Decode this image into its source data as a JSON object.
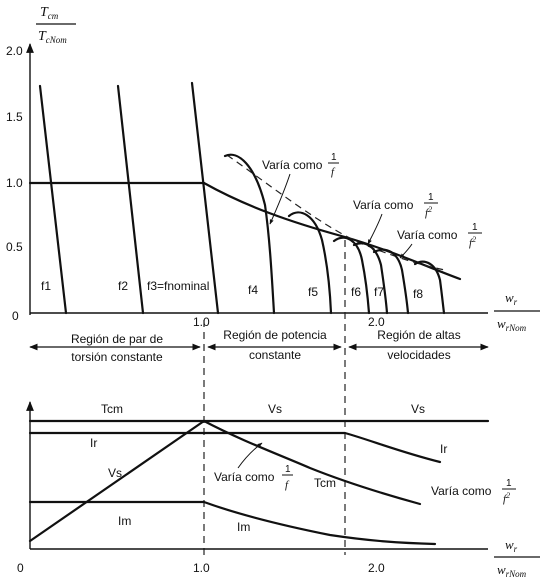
{
  "top": {
    "y_label_num": "T",
    "y_label_num_sub": "cm",
    "y_label_den": "T",
    "y_label_den_sub": "cNom",
    "y_ticks": [
      "2.0",
      "1.5",
      "1.0",
      "0.5",
      "0"
    ],
    "x_ticks": [
      "1.0",
      "2.0"
    ],
    "x_label_num": "w",
    "x_label_num_sub": "r",
    "x_label_den": "w",
    "x_label_den_sub": "rNom",
    "freq_labels": [
      "f1",
      "f2",
      "f3=fnominal",
      "f4",
      "f5",
      "f6",
      "f7",
      "f8"
    ],
    "annotations": {
      "a1_text": "Varía como",
      "a1_num": "1",
      "a1_den": "f",
      "a2_text": "Varía como",
      "a2_num": "1",
      "a2_den": "f",
      "a2_den_exp": "2",
      "a3_text": "Varía como",
      "a3_num": "1",
      "a3_den": "f",
      "a3_den_exp": "2"
    }
  },
  "regions": {
    "r1_line1": "Región de par de",
    "r1_line2": "torsión constante",
    "r2_line1": "Región de potencia",
    "r2_line2": "constante",
    "r3_line1": "Región de altas",
    "r3_line2": "velocidades"
  },
  "bottom": {
    "header_labels": [
      "Tcm",
      "Vs",
      "Vs"
    ],
    "curve_labels": {
      "ir1": "Ir",
      "ir2": "Ir",
      "vs": "Vs",
      "im1": "Im",
      "im2": "Im",
      "tcm": "Tcm"
    },
    "annotations": {
      "b1_text": "Varía como",
      "b1_num": "1",
      "b1_den": "f",
      "b2_text": "Varía como",
      "b2_num": "1",
      "b2_den": "f",
      "b2_den_exp": "2"
    },
    "x_ticks": [
      "0",
      "1.0",
      "2.0"
    ],
    "x_label_num": "w",
    "x_label_num_sub": "r",
    "x_label_den": "w",
    "x_label_den_sub": "rNom"
  }
}
